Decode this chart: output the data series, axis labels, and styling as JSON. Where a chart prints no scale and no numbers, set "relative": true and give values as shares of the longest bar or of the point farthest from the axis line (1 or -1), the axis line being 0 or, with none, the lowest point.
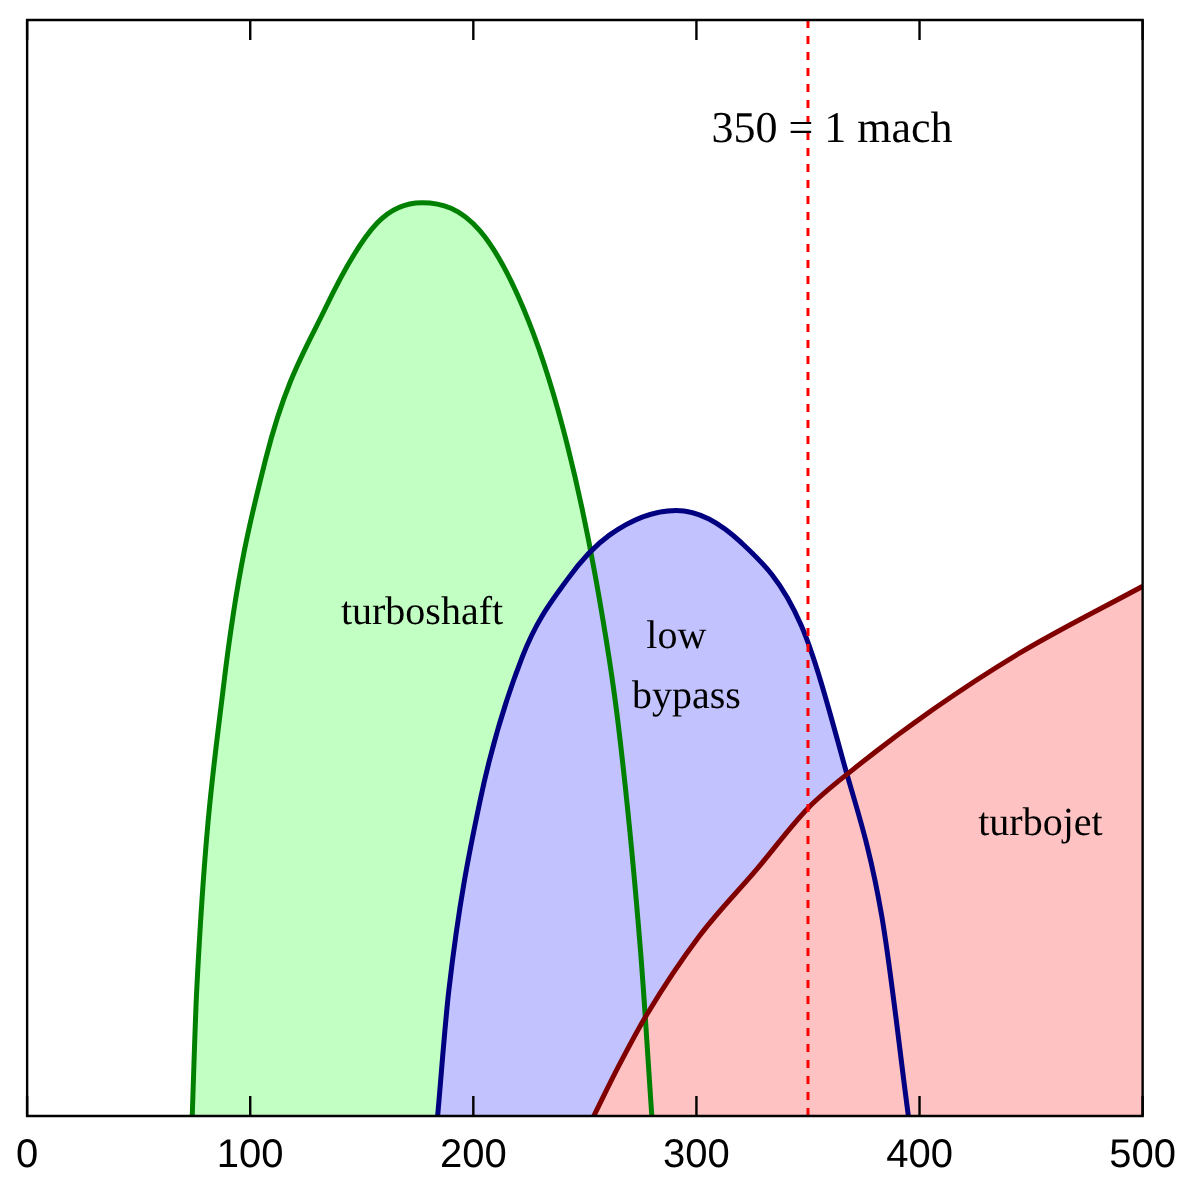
{
  "chart_data": {
    "type": "area",
    "relative": true,
    "xlim": [
      0,
      500
    ],
    "xticks": [
      0,
      100,
      200,
      300,
      400,
      500
    ],
    "grid": false,
    "legend": false,
    "tick_labels": "x",
    "series": [
      {
        "name": "turboshaft",
        "color": "#008000",
        "x": [
          74,
          76,
          88,
          107,
          134,
          157,
          177,
          203,
          225,
          242,
          255,
          265,
          275,
          280
        ],
        "values": [
          0,
          0.137,
          0.47,
          0.72,
          0.886,
          0.978,
          1,
          0.969,
          0.869,
          0.736,
          0.587,
          0.428,
          0.179,
          0
        ]
      },
      {
        "name": "low bypass",
        "color": "#000080",
        "x": [
          184,
          189,
          203,
          222,
          242,
          261,
          291,
          320,
          347,
          366,
          383,
          395
        ],
        "values": [
          0,
          0.137,
          0.345,
          0.503,
          0.587,
          0.636,
          0.663,
          0.628,
          0.537,
          0.387,
          0.22,
          0
        ]
      },
      {
        "name": "turbojet",
        "color": "#800000",
        "x": [
          254,
          265,
          278,
          301,
          327,
          350,
          370,
          406,
          445,
          500
        ],
        "values": [
          0,
          0.054,
          0.112,
          0.196,
          0.27,
          0.337,
          0.379,
          0.445,
          0.507,
          0.58
        ]
      }
    ],
    "ref_lines": [
      {
        "axis": "x",
        "value": 350,
        "label": "350 = 1 mach",
        "color": "#ff0000",
        "line_style": "dashed"
      }
    ]
  }
}
